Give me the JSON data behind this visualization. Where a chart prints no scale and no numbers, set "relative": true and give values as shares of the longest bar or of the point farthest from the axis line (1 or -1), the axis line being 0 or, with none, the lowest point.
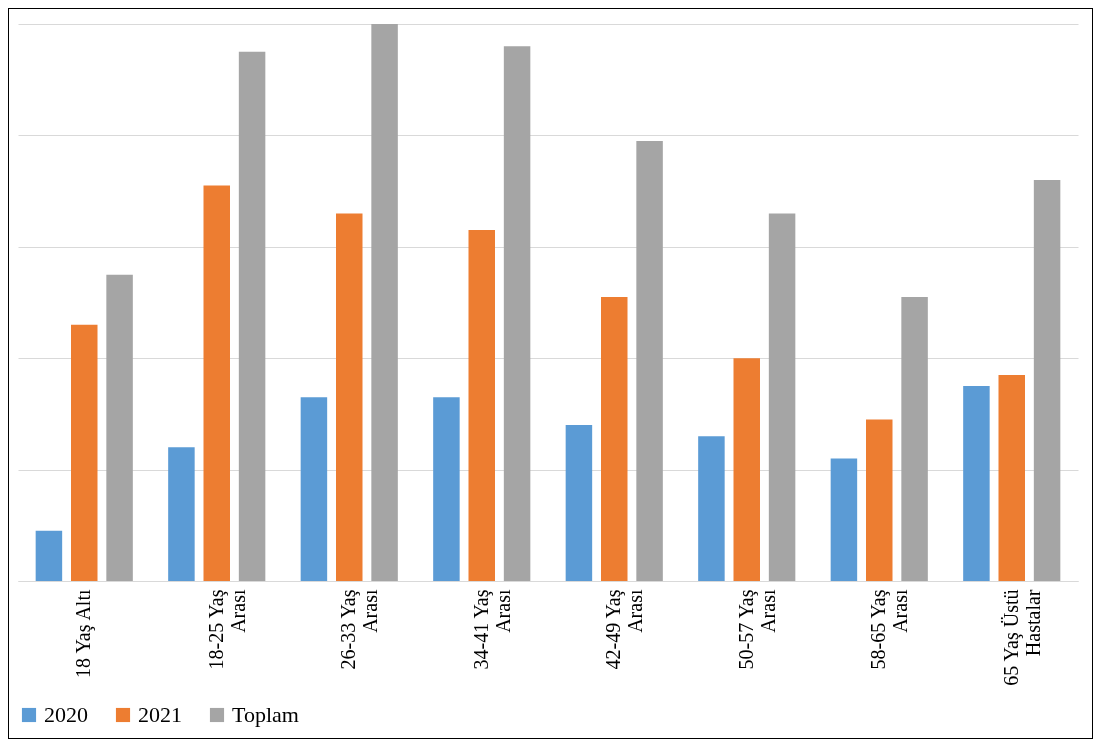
{
  "chart_data": {
    "type": "bar",
    "relative": true,
    "grid": "y",
    "legend": "bottom",
    "categories": [
      "18 Yaş Altı",
      "18-25 Yaş Arası",
      "26-33 Yaş Arası",
      "34-41 Yaş Arası",
      "42-49 Yaş Arası",
      "50-57 Yaş Arası",
      "58-65 Yaş Arası",
      "65 Yaş Üstü Hastalar"
    ],
    "series": [
      {
        "name": "2020",
        "color": "#5b9bd5",
        "values": [
          0.09,
          0.24,
          0.33,
          0.33,
          0.28,
          0.26,
          0.22,
          0.35
        ]
      },
      {
        "name": "2021",
        "color": "#ed7d31",
        "values": [
          0.46,
          0.71,
          0.66,
          0.63,
          0.51,
          0.4,
          0.29,
          0.37
        ]
      },
      {
        "name": "Toplam",
        "color": "#a5a5a5",
        "values": [
          0.55,
          0.95,
          1,
          0.96,
          0.79,
          0.66,
          0.51,
          0.72
        ]
      }
    ]
  }
}
